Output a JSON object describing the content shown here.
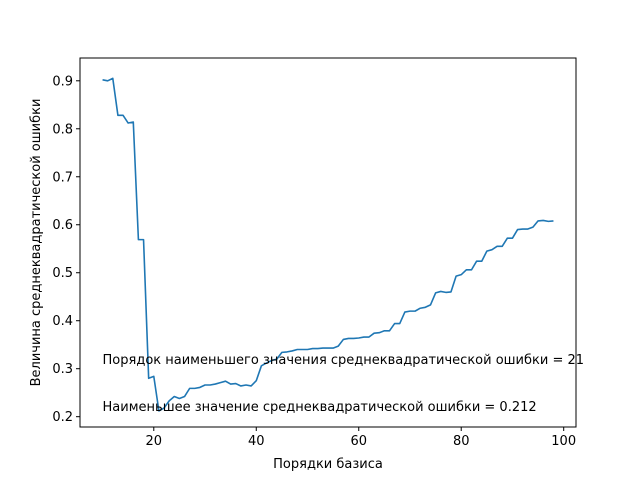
{
  "chart_data": {
    "type": "line",
    "xlabel": "Порядки базиса",
    "ylabel": "Величина среднеквадратической ошибки",
    "xlim": [
      5.6,
      102.4
    ],
    "ylim": [
      0.1785,
      0.9475
    ],
    "xticks": [
      20,
      40,
      60,
      80,
      100
    ],
    "yticks": [
      0.2,
      0.3,
      0.4,
      0.5,
      0.6,
      0.7,
      0.8,
      0.9
    ],
    "grid": false,
    "line_color": "#1f77b4",
    "series": [
      {
        "x": [
          10,
          11,
          12,
          13,
          14,
          15,
          16,
          17,
          18,
          19,
          20,
          21,
          22,
          23,
          24,
          25,
          26,
          27,
          28,
          29,
          30,
          31,
          32,
          33,
          34,
          35,
          36,
          37,
          38,
          39,
          40,
          41,
          42,
          43,
          44,
          45,
          46,
          47,
          48,
          49,
          50,
          51,
          52,
          53,
          54,
          55,
          56,
          57,
          58,
          59,
          60,
          61,
          62,
          63,
          64,
          65,
          66,
          67,
          68,
          69,
          70,
          71,
          72,
          73,
          74,
          75,
          76,
          77,
          78,
          79,
          80,
          81,
          82,
          83,
          84,
          85,
          86,
          87,
          88,
          89,
          90,
          91,
          92,
          93,
          94,
          95,
          96,
          97,
          98
        ],
        "y": [
          0.902,
          0.9,
          0.905,
          0.828,
          0.828,
          0.812,
          0.814,
          0.569,
          0.569,
          0.28,
          0.284,
          0.212,
          0.218,
          0.233,
          0.242,
          0.238,
          0.242,
          0.259,
          0.259,
          0.261,
          0.266,
          0.266,
          0.268,
          0.271,
          0.274,
          0.268,
          0.269,
          0.264,
          0.266,
          0.264,
          0.275,
          0.306,
          0.312,
          0.317,
          0.32,
          0.334,
          0.335,
          0.337,
          0.34,
          0.34,
          0.34,
          0.342,
          0.342,
          0.343,
          0.343,
          0.343,
          0.347,
          0.361,
          0.363,
          0.363,
          0.364,
          0.366,
          0.366,
          0.374,
          0.375,
          0.379,
          0.379,
          0.394,
          0.394,
          0.418,
          0.42,
          0.42,
          0.426,
          0.428,
          0.433,
          0.458,
          0.461,
          0.459,
          0.46,
          0.493,
          0.496,
          0.506,
          0.506,
          0.524,
          0.524,
          0.545,
          0.548,
          0.555,
          0.555,
          0.572,
          0.572,
          0.59,
          0.591,
          0.591,
          0.595,
          0.608,
          0.609,
          0.607,
          0.608
        ]
      }
    ],
    "annotations": [
      {
        "text": "Порядок наименьшего значения среднеквадратической ошибки = 21",
        "x": 10,
        "y": 0.31
      },
      {
        "text": "Наименьшее значение среднеквадратической ошибки = 0.212",
        "x": 10,
        "y": 0.212
      }
    ]
  }
}
